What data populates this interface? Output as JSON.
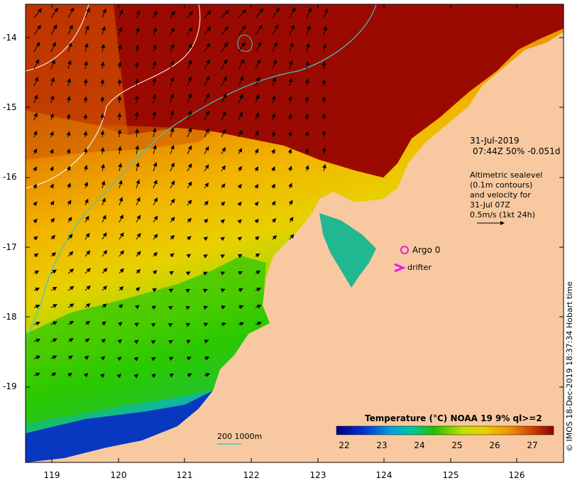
{
  "axes": {
    "y_ticks": [
      "-14",
      "-15",
      "-16",
      "-17",
      "-18",
      "-19"
    ],
    "x_ticks": [
      "119",
      "120",
      "121",
      "122",
      "123",
      "124",
      "125",
      "126"
    ]
  },
  "annotation": {
    "date": "31-Jul-2019",
    "time_line": "07:44Z  50% -0.051d",
    "alt_line1": "Altimetric sealevel",
    "alt_line2": "(0.1m contours)",
    "alt_line3": "and velocity for",
    "alt_line4": "31-Jul 07Z",
    "scale_line": "0.5m/s (1kt 24h)"
  },
  "markers": {
    "argo_label": "Argo 0",
    "drifter_label": "drifter"
  },
  "depth_legend": "200  1000m",
  "colorbar": {
    "title": "Temperature (°C) NOAA 19 9% ql>=2",
    "ticks": [
      "22",
      "23",
      "24",
      "25",
      "26",
      "27"
    ]
  },
  "credit": "© IMOS 18-Dec-2019 18:37:34 Hobart time",
  "colors": {
    "land": "#f8c9a0",
    "warm_dark": "#9b0a00",
    "contour_cyan": "#3cc8c8",
    "argo_magenta": "#e020e0"
  }
}
